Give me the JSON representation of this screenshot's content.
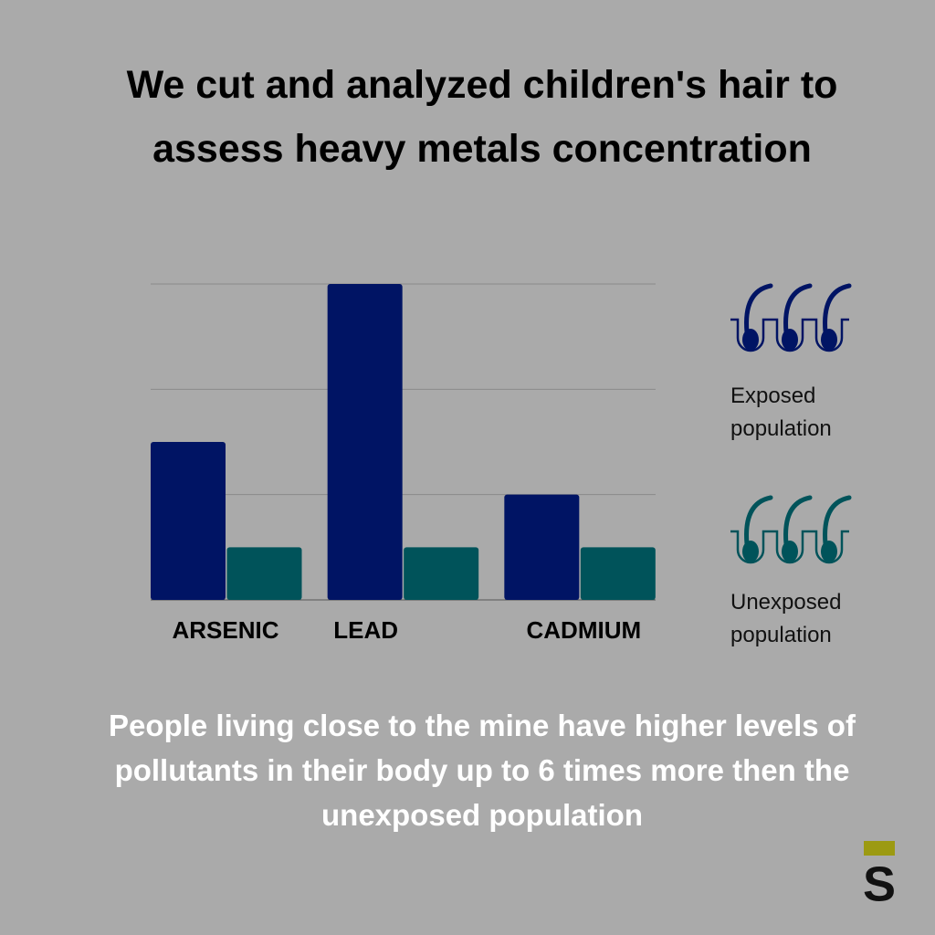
{
  "chart_data": {
    "type": "bar",
    "title": "We cut and analyzed children's hair to assess heavy metals concentration",
    "subtitle": "People living close to the mine have higher levels of pollutants in their body up to 6 times more then the unexposed population",
    "categories": [
      "ARSENIC",
      "LEAD",
      "CADMIUM"
    ],
    "series": [
      {
        "name": "Exposed population",
        "color": "#001464",
        "values": [
          1.5,
          3,
          1
        ]
      },
      {
        "name": "Unexposed population",
        "color": "#00535a",
        "values": [
          0.5,
          0.5,
          0.5
        ]
      }
    ],
    "ylim": [
      0,
      3
    ],
    "yticks": [
      0,
      1,
      2,
      3
    ],
    "grid": true,
    "legend": "right",
    "brand": "S"
  }
}
